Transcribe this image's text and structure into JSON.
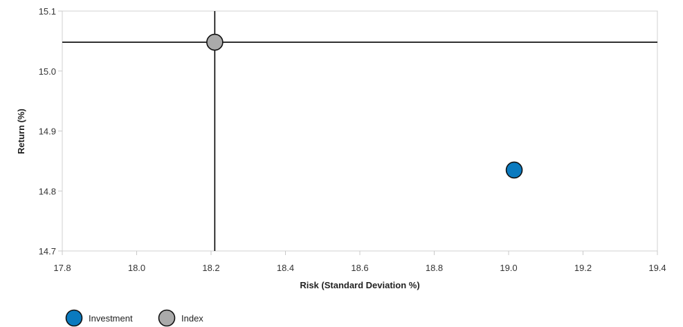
{
  "chart_data": {
    "type": "scatter",
    "title": "",
    "xlabel": "Risk (Standard Deviation %)",
    "ylabel": "Return (%)",
    "xlim": [
      17.8,
      19.4
    ],
    "ylim": [
      14.7,
      15.1
    ],
    "x_ticks": [
      "17.8",
      "18.0",
      "18.2",
      "18.4",
      "18.6",
      "18.8",
      "19.0",
      "19.2",
      "19.4"
    ],
    "y_ticks": [
      "14.7",
      "14.8",
      "14.9",
      "15.0",
      "15.1"
    ],
    "grid": false,
    "legend_position": "bottom-left",
    "crosshair": {
      "x": 18.21,
      "y": 15.048,
      "color": "#000000"
    },
    "series": [
      {
        "name": "Investment",
        "x": 19.015,
        "y": 14.835,
        "color": "#0a7abf"
      },
      {
        "name": "Index",
        "x": 18.21,
        "y": 15.048,
        "color": "#aaaaaa"
      }
    ]
  }
}
